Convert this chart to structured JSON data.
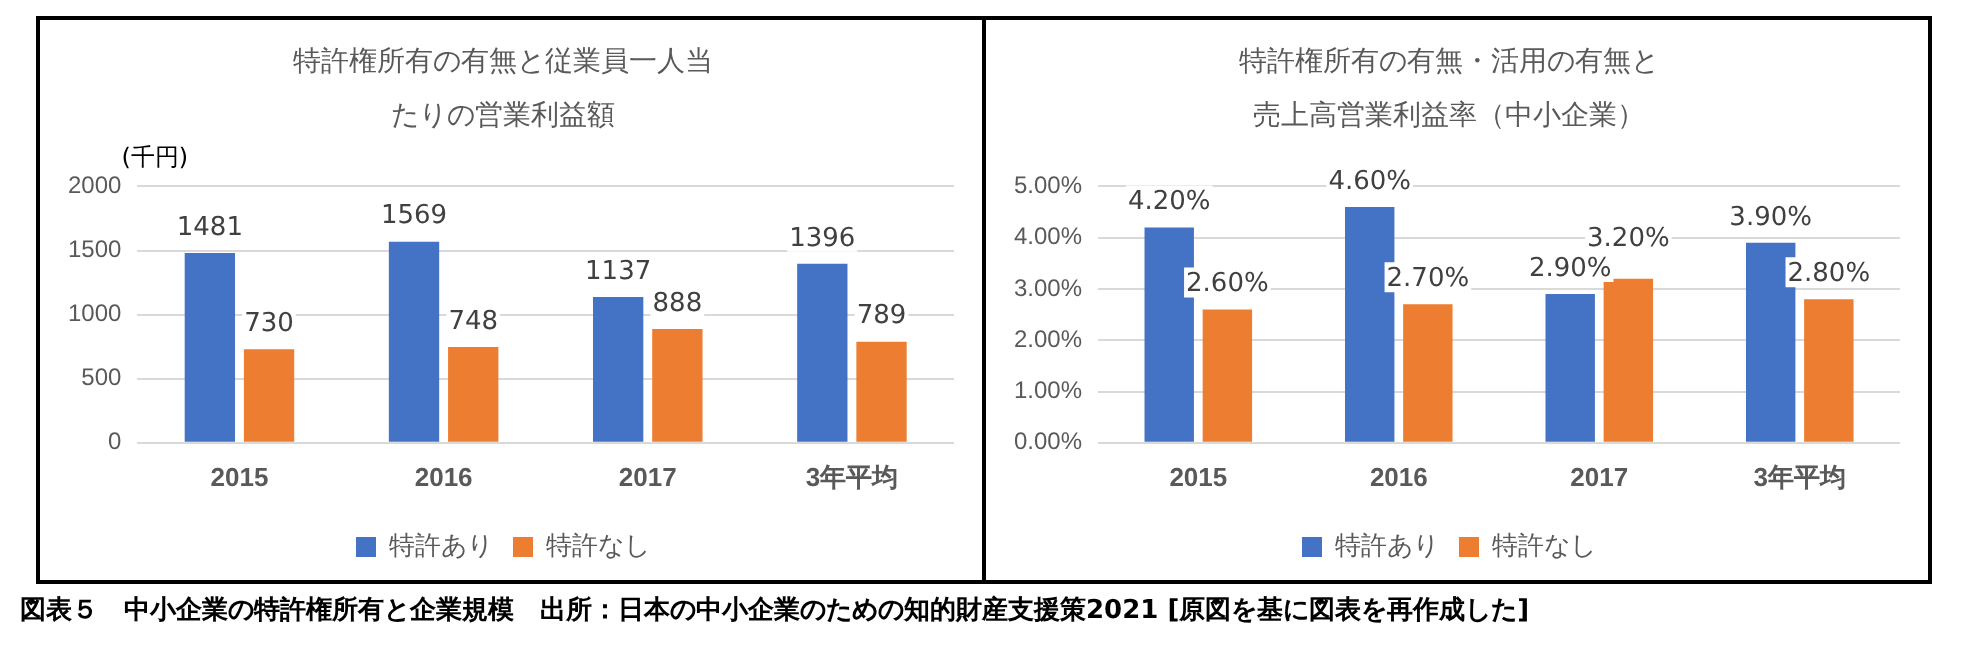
{
  "chart_data": [
    {
      "type": "bar",
      "title": "特許権所有の有無と従業員一人当たりの営業利益額",
      "ylabel": "(千円)",
      "categories": [
        "2015",
        "2016",
        "2017",
        "3年平均"
      ],
      "series": [
        {
          "name": "特許あり",
          "color": "#4472c4",
          "values": [
            1481,
            1569,
            1137,
            1396
          ]
        },
        {
          "name": "特許なし",
          "color": "#ed7d31",
          "values": [
            730,
            748,
            888,
            789
          ]
        }
      ],
      "ylim": [
        0,
        2000
      ],
      "yticks": [
        0,
        500,
        1000,
        1500,
        2000
      ],
      "grid": "y",
      "legend": "bottom",
      "data_labels": true,
      "annotations": [
        "図表５　中小企業の特許権所有と企業規模　出所：日本の中小企業のための知的財産支援策2021 [原図を基に図表を再作成した]"
      ]
    },
    {
      "type": "bar",
      "title": "特許権所有の有無・活用の有無と売上高営業利益率（中小企業）",
      "categories": [
        "2015",
        "2016",
        "2017",
        "3年平均"
      ],
      "series": [
        {
          "name": "特許あり",
          "color": "#4472c4",
          "values": [
            4.2,
            4.6,
            2.9,
            3.9
          ],
          "value_labels": [
            "4.20%",
            "4.60%",
            "2.90%",
            "3.90%"
          ]
        },
        {
          "name": "特許なし",
          "color": "#ed7d31",
          "values": [
            2.6,
            2.7,
            3.2,
            2.8
          ],
          "value_labels": [
            "2.60%",
            "2.70%",
            "3.20%",
            "2.80%"
          ]
        }
      ],
      "ylim": [
        0,
        5
      ],
      "yticks": [
        {
          "value": 0,
          "label": "0.00%"
        },
        {
          "value": 1,
          "label": "1.00%"
        },
        {
          "value": 2,
          "label": "2.00%"
        },
        {
          "value": 3,
          "label": "3.00%"
        },
        {
          "value": 4,
          "label": "4.00%"
        },
        {
          "value": 5,
          "label": "5.00%"
        }
      ],
      "grid": "y",
      "legend": "bottom"
    }
  ]
}
